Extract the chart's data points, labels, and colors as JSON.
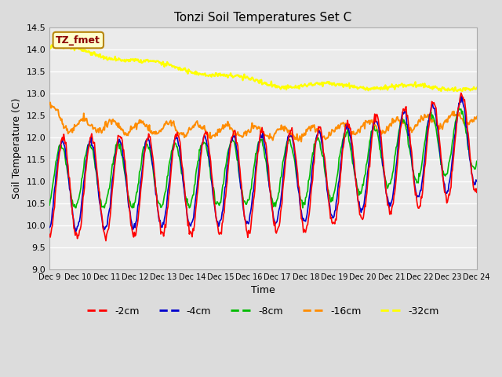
{
  "title": "Tonzi Soil Temperatures Set C",
  "xlabel": "Time",
  "ylabel": "Soil Temperature (C)",
  "ylim": [
    9.0,
    14.5
  ],
  "annotation": "TZ_fmet",
  "annotation_color": "#8B0000",
  "annotation_bg": "#FFFFCC",
  "annotation_border": "#B8860B",
  "colors": {
    "-2cm": "#FF0000",
    "-4cm": "#0000CD",
    "-8cm": "#00BB00",
    "-16cm": "#FF8C00",
    "-32cm": "#FFFF00"
  },
  "lw": {
    "-2cm": 1.2,
    "-4cm": 1.2,
    "-8cm": 1.2,
    "-16cm": 1.4,
    "-32cm": 1.6
  },
  "bg_color": "#DCDCDC",
  "plot_bg": "#EBEBEB",
  "grid_color": "#FFFFFF",
  "yticks": [
    9.0,
    9.5,
    10.0,
    10.5,
    11.0,
    11.5,
    12.0,
    12.5,
    13.0,
    13.5,
    14.0,
    14.5
  ],
  "xtick_labels": [
    "Dec 9",
    "Dec 10",
    "Dec 11",
    "Dec 12",
    "Dec 13",
    "Dec 14",
    "Dec 15",
    "Dec 16",
    "Dec 17",
    "Dec 18",
    "Dec 19",
    "Dec 20",
    "Dec 21",
    "Dec 22",
    "Dec 23",
    "Dec 24"
  ]
}
